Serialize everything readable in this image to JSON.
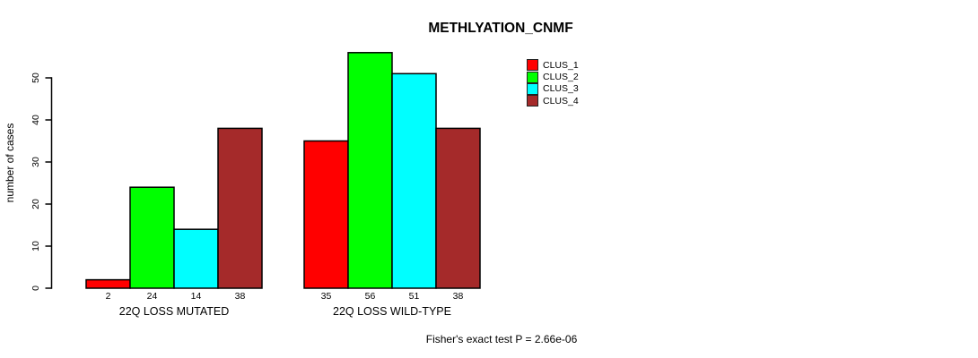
{
  "title": "METHLYATION_CNMF",
  "y_axis": {
    "label": "number of cases"
  },
  "footer": "Fisher's exact test P = 2.66e-06",
  "legend": {
    "items": [
      {
        "label": "CLUS_1",
        "color": "#FF0000"
      },
      {
        "label": "CLUS_2",
        "color": "#00FF00"
      },
      {
        "label": "CLUS_3",
        "color": "#00FFFF"
      },
      {
        "label": "CLUS_4",
        "color": "#A52A2A"
      }
    ]
  },
  "chart_data": {
    "type": "bar",
    "title": "METHLYATION_CNMF",
    "xlabel": "",
    "ylabel": "number of cases",
    "ylim": [
      0,
      56
    ],
    "yticks": [
      0,
      10,
      20,
      30,
      40,
      50
    ],
    "categories": [
      "22Q LOSS MUTATED",
      "22Q LOSS WILD-TYPE"
    ],
    "series": [
      {
        "name": "CLUS_1",
        "color": "#FF0000",
        "values": [
          2,
          35
        ]
      },
      {
        "name": "CLUS_2",
        "color": "#00FF00",
        "values": [
          24,
          56
        ]
      },
      {
        "name": "CLUS_3",
        "color": "#00FFFF",
        "values": [
          14,
          51
        ]
      },
      {
        "name": "CLUS_4",
        "color": "#A52A2A",
        "values": [
          38,
          38
        ]
      }
    ],
    "bar_value_labels": [
      [
        2,
        24,
        14,
        38
      ],
      [
        35,
        56,
        51,
        38
      ]
    ],
    "annotation": "Fisher's exact test P = 2.66e-06",
    "legend_position": "top-right-outside-plot",
    "grid": false,
    "bar_border_color": "#000000",
    "background": "#FFFFFF"
  }
}
